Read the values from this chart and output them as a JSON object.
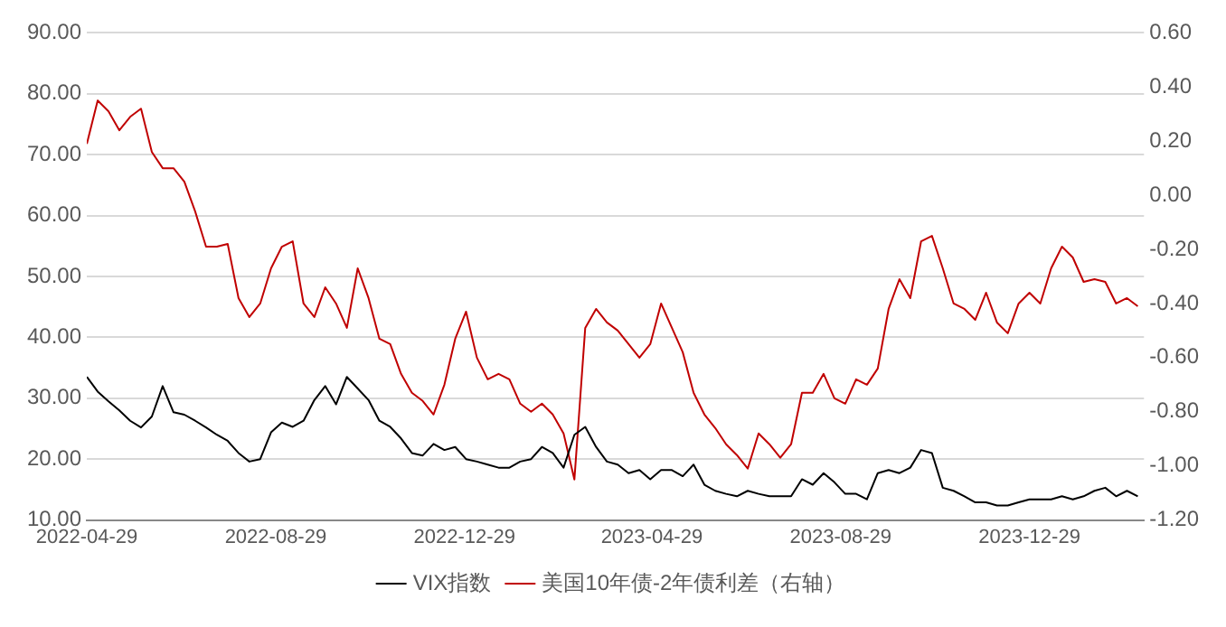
{
  "chart_data": {
    "type": "line",
    "x": [
      "2022-04-29",
      "2022-05-06",
      "2022-05-13",
      "2022-05-20",
      "2022-05-27",
      "2022-06-03",
      "2022-06-10",
      "2022-06-17",
      "2022-06-24",
      "2022-07-01",
      "2022-07-08",
      "2022-07-15",
      "2022-07-22",
      "2022-07-29",
      "2022-08-05",
      "2022-08-12",
      "2022-08-19",
      "2022-08-26",
      "2022-09-02",
      "2022-09-09",
      "2022-09-16",
      "2022-09-23",
      "2022-09-30",
      "2022-10-07",
      "2022-10-14",
      "2022-10-21",
      "2022-10-28",
      "2022-11-04",
      "2022-11-11",
      "2022-11-18",
      "2022-11-25",
      "2022-12-02",
      "2022-12-09",
      "2022-12-16",
      "2022-12-23",
      "2022-12-30",
      "2023-01-06",
      "2023-01-13",
      "2023-01-20",
      "2023-01-27",
      "2023-02-03",
      "2023-02-10",
      "2023-02-17",
      "2023-02-24",
      "2023-03-03",
      "2023-03-10",
      "2023-03-17",
      "2023-03-24",
      "2023-03-31",
      "2023-04-07",
      "2023-04-14",
      "2023-04-21",
      "2023-04-28",
      "2023-05-05",
      "2023-05-12",
      "2023-05-19",
      "2023-05-26",
      "2023-06-02",
      "2023-06-09",
      "2023-06-16",
      "2023-06-23",
      "2023-06-30",
      "2023-07-07",
      "2023-07-14",
      "2023-07-21",
      "2023-07-28",
      "2023-08-04",
      "2023-08-11",
      "2023-08-18",
      "2023-08-25",
      "2023-09-01",
      "2023-09-08",
      "2023-09-15",
      "2023-09-22",
      "2023-09-29",
      "2023-10-06",
      "2023-10-13",
      "2023-10-20",
      "2023-10-27",
      "2023-11-03",
      "2023-11-10",
      "2023-11-17",
      "2023-11-24",
      "2023-12-01",
      "2023-12-08",
      "2023-12-15",
      "2023-12-22",
      "2023-12-29",
      "2024-01-05",
      "2024-01-12",
      "2024-01-19",
      "2024-01-26",
      "2024-02-02",
      "2024-02-09",
      "2024-02-16",
      "2024-02-23",
      "2024-03-01",
      "2024-03-08"
    ],
    "series": [
      {
        "name": "VIX指数",
        "color": "#000000",
        "values": [
          33.5,
          31.1,
          29.5,
          28,
          26.3,
          25.2,
          27,
          32,
          27.7,
          27.3,
          26.3,
          25.2,
          24,
          23,
          21,
          19.6,
          20,
          24.4,
          26,
          25.3,
          26.3,
          29.7,
          32,
          29,
          33.5,
          31.6,
          29.7,
          26.3,
          25.3,
          23.4,
          21,
          20.6,
          22.5,
          21.5,
          22,
          20,
          19.6,
          19.1,
          18.6,
          18.6,
          19.6,
          20,
          22,
          21,
          18.6,
          24,
          25.3,
          22,
          19.6,
          19.1,
          17.7,
          18.2,
          16.7,
          18.2,
          18.2,
          17.2,
          19.1,
          15.8,
          14.8,
          14.3,
          13.9,
          14.8,
          14.3,
          13.9,
          13.9,
          13.9,
          16.7,
          15.8,
          17.7,
          16.2,
          14.3,
          14.3,
          13.4,
          17.7,
          18.2,
          17.7,
          18.6,
          21.5,
          21,
          15.3,
          14.8,
          13.9,
          12.9,
          12.9,
          12.4,
          12.4,
          12.9,
          13.4,
          13.4,
          13.4,
          13.9,
          13.4,
          13.9,
          14.8,
          15.3,
          13.9,
          14.8,
          13.9
        ]
      },
      {
        "name": "美国10年债-2年债利差（右轴）",
        "color": "#c00000",
        "axis": "y2",
        "values": [
          0.19,
          0.35,
          0.31,
          0.24,
          0.29,
          0.32,
          0.16,
          0.1,
          0.1,
          0.05,
          -0.06,
          -0.19,
          -0.19,
          -0.18,
          -0.38,
          -0.45,
          -0.4,
          -0.27,
          -0.19,
          -0.17,
          -0.4,
          -0.45,
          -0.34,
          -0.4,
          -0.49,
          -0.27,
          -0.38,
          -0.53,
          -0.55,
          -0.66,
          -0.73,
          -0.76,
          -0.81,
          -0.7,
          -0.53,
          -0.43,
          -0.6,
          -0.68,
          -0.66,
          -0.68,
          -0.77,
          -0.8,
          -0.77,
          -0.81,
          -0.88,
          -1.05,
          -0.49,
          -0.42,
          -0.47,
          -0.5,
          -0.55,
          -0.6,
          -0.55,
          -0.4,
          -0.49,
          -0.58,
          -0.73,
          -0.81,
          -0.86,
          -0.92,
          -0.96,
          -1.01,
          -0.88,
          -0.92,
          -0.97,
          -0.92,
          -0.73,
          -0.73,
          -0.66,
          -0.75,
          -0.77,
          -0.68,
          -0.7,
          -0.64,
          -0.42,
          -0.31,
          -0.38,
          -0.17,
          -0.15,
          -0.27,
          -0.4,
          -0.42,
          -0.46,
          -0.36,
          -0.47,
          -0.51,
          -0.4,
          -0.36,
          -0.4,
          -0.27,
          -0.19,
          -0.23,
          -0.32,
          -0.31,
          -0.32,
          -0.4,
          -0.38,
          -0.41
        ]
      }
    ],
    "xlim": [
      "2022-04-29",
      "2024-03-12"
    ],
    "xticks": [
      "2022-04-29",
      "2022-08-29",
      "2022-12-29",
      "2023-04-29",
      "2023-08-29",
      "2023-12-29"
    ],
    "ylim": [
      10,
      90
    ],
    "yticks": [
      {
        "value": 10,
        "label": "10.00"
      },
      {
        "value": 20,
        "label": "20.00"
      },
      {
        "value": 30,
        "label": "30.00"
      },
      {
        "value": 40,
        "label": "40.00"
      },
      {
        "value": 50,
        "label": "50.00"
      },
      {
        "value": 60,
        "label": "60.00"
      },
      {
        "value": 70,
        "label": "70.00"
      },
      {
        "value": 80,
        "label": "80.00"
      },
      {
        "value": 90,
        "label": "90.00"
      }
    ],
    "y2lim": [
      -1.2,
      0.6
    ],
    "y2ticks": [
      {
        "value": -1.2,
        "label": "-1.20"
      },
      {
        "value": -1,
        "label": "-1.00"
      },
      {
        "value": -0.8,
        "label": "-0.80"
      },
      {
        "value": -0.6,
        "label": "-0.60"
      },
      {
        "value": -0.4,
        "label": "-0.40"
      },
      {
        "value": -0.2,
        "label": "-0.20"
      },
      {
        "value": 0,
        "label": "0.00"
      },
      {
        "value": 0.2,
        "label": "0.20"
      },
      {
        "value": 0.4,
        "label": "0.40"
      },
      {
        "value": 0.6,
        "label": "0.60"
      }
    ],
    "grid": "y",
    "legend": "bottom",
    "marker": "none",
    "line_style": "solid"
  }
}
